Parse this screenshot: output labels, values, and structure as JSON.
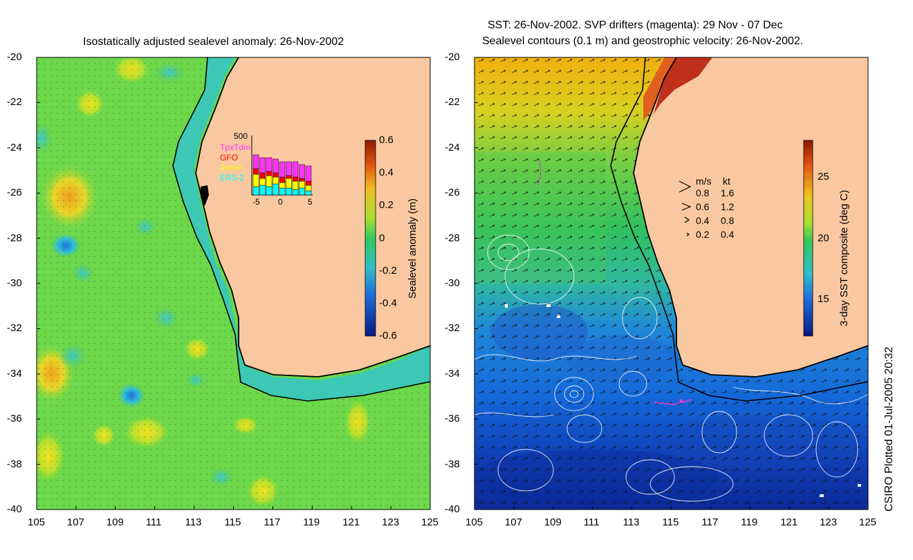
{
  "left_map": {
    "title": "Isostatically adjusted sealevel anomaly: 26-Nov-2002",
    "colorbar": {
      "label": "Sealevel anomaly (m)",
      "ticks": [
        "0.6",
        "0.4",
        "0.2",
        "0",
        "-0.2",
        "-0.4",
        "-0.6"
      ],
      "range": [
        -0.6,
        0.6
      ]
    },
    "inset": {
      "ymax_label": "500",
      "x_ticks": [
        "-5",
        "0",
        "5"
      ],
      "legend": [
        {
          "name": "TpxTdm",
          "color": "#ff33ff"
        },
        {
          "name": "GFO",
          "color": "#ff0000"
        },
        {
          "name": "Jason",
          "color": "#ffff00"
        },
        {
          "name": "ERS-2",
          "color": "#00ffff"
        }
      ]
    }
  },
  "right_map": {
    "title_line1": "SST: 26-Nov-2002. SVP drifters (magenta): 29 Nov - 07 Dec",
    "title_line2": "Sealevel contours (0.1 m) and geostrophic velocity: 26-Nov-2002.",
    "colorbar": {
      "label": "3-day SST composite (deg C)",
      "ticks": [
        "25",
        "20",
        "15"
      ]
    },
    "speed_legend": {
      "header_ms": "m/s",
      "header_kt": "kt",
      "rows": [
        {
          "ms": "0.8",
          "kt": "1.6"
        },
        {
          "ms": "0.6",
          "kt": "1.2"
        },
        {
          "ms": "0.4",
          "kt": "0.8"
        },
        {
          "ms": "0.2",
          "kt": "0.4"
        }
      ]
    }
  },
  "axes": {
    "lat_ticks": [
      "-20",
      "-22",
      "-24",
      "-26",
      "-28",
      "-30",
      "-32",
      "-34",
      "-36",
      "-38",
      "-40"
    ],
    "lon_ticks": [
      "105",
      "107",
      "109",
      "111",
      "113",
      "115",
      "117",
      "119",
      "121",
      "123",
      "125"
    ]
  },
  "credit": "CSIRO Plotted 01-Jul-2005 20:32",
  "colors": {
    "land": "#f9c8a0",
    "shelf": "#3cc8b4",
    "coastline": "#000000"
  }
}
